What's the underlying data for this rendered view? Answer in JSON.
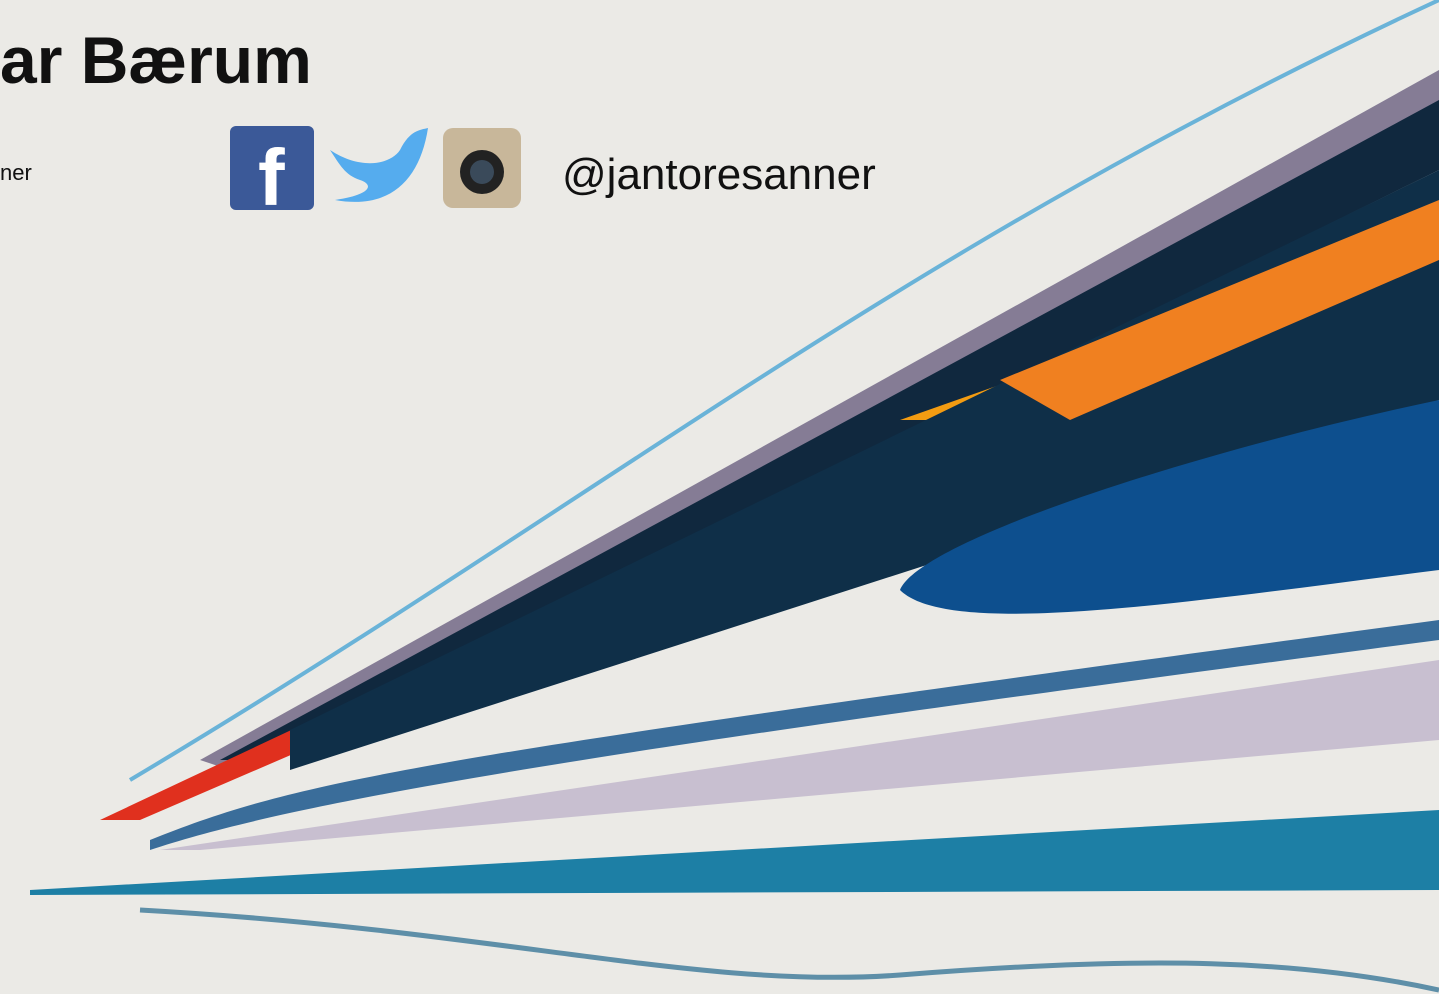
{
  "header": {
    "title": "ar Bærum",
    "subtitle": "ner",
    "handle": "@jantoresanner"
  }
}
